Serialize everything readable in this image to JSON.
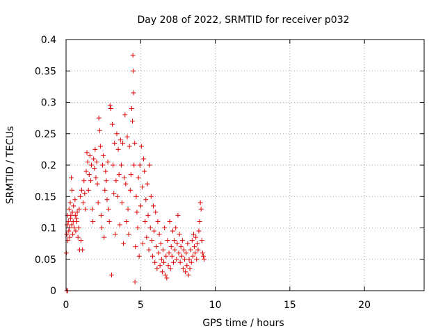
{
  "chart_data": {
    "type": "scatter",
    "title": "Day 208 of 2022, SRMTID for receiver p032",
    "xlabel": "GPS time / hours",
    "ylabel": "SRMTID / TECUs",
    "xlim": [
      0,
      24
    ],
    "ylim": [
      0,
      0.4
    ],
    "x_ticks": [
      0,
      5,
      10,
      15,
      20
    ],
    "x_tick_labels": [
      "0",
      "5",
      "10",
      "15",
      "20"
    ],
    "y_ticks": [
      0,
      0.05,
      0.1,
      0.15,
      0.2,
      0.25,
      0.3,
      0.35,
      0.4
    ],
    "y_tick_labels": [
      "0",
      "0.05",
      "0.1",
      "0.15",
      "0.2",
      "0.25",
      "0.3",
      "0.35",
      "0.4"
    ],
    "grid": true,
    "marker": "+",
    "marker_color": "#dd0000",
    "grid_color": "#a0a0a0",
    "series": [
      {
        "name": "SRMTID",
        "points": [
          [
            0.05,
            0.0
          ],
          [
            0.1,
            0.0
          ],
          [
            0.02,
            0.06
          ],
          [
            0.05,
            0.09
          ],
          [
            0.08,
            0.105
          ],
          [
            0.1,
            0.12
          ],
          [
            0.12,
            0.08
          ],
          [
            0.15,
            0.11
          ],
          [
            0.18,
            0.095
          ],
          [
            0.2,
            0.13
          ],
          [
            0.22,
            0.1
          ],
          [
            0.25,
            0.085
          ],
          [
            0.28,
            0.14
          ],
          [
            0.3,
            0.115
          ],
          [
            0.32,
            0.12
          ],
          [
            0.35,
            0.18
          ],
          [
            0.38,
            0.105
          ],
          [
            0.4,
            0.16
          ],
          [
            0.42,
            0.125
          ],
          [
            0.45,
            0.09
          ],
          [
            0.48,
            0.11
          ],
          [
            0.5,
            0.135
          ],
          [
            0.55,
            0.1
          ],
          [
            0.6,
            0.145
          ],
          [
            0.62,
            0.12
          ],
          [
            0.65,
            0.095
          ],
          [
            0.7,
            0.115
          ],
          [
            0.72,
            0.11
          ],
          [
            0.75,
            0.125
          ],
          [
            0.8,
            0.085
          ],
          [
            0.85,
            0.1
          ],
          [
            0.88,
            0.13
          ],
          [
            0.9,
            0.065
          ],
          [
            0.95,
            0.15
          ],
          [
            1.0,
            0.08
          ],
          [
            1.05,
            0.16
          ],
          [
            1.1,
            0.065
          ],
          [
            1.15,
            0.14
          ],
          [
            1.2,
            0.175
          ],
          [
            1.25,
            0.155
          ],
          [
            1.3,
            0.13
          ],
          [
            1.35,
            0.19
          ],
          [
            1.4,
            0.22
          ],
          [
            1.45,
            0.205
          ],
          [
            1.5,
            0.16
          ],
          [
            1.55,
            0.185
          ],
          [
            1.6,
            0.215
          ],
          [
            1.65,
            0.175
          ],
          [
            1.7,
            0.2
          ],
          [
            1.75,
            0.13
          ],
          [
            1.8,
            0.11
          ],
          [
            1.85,
            0.21
          ],
          [
            1.9,
            0.195
          ],
          [
            1.95,
            0.225
          ],
          [
            2.0,
            0.18
          ],
          [
            2.05,
            0.205
          ],
          [
            2.1,
            0.17
          ],
          [
            2.15,
            0.14
          ],
          [
            2.2,
            0.275
          ],
          [
            2.25,
            0.255
          ],
          [
            2.3,
            0.23
          ],
          [
            2.35,
            0.12
          ],
          [
            2.4,
            0.1
          ],
          [
            2.45,
            0.2
          ],
          [
            2.5,
            0.215
          ],
          [
            2.55,
            0.085
          ],
          [
            2.6,
            0.16
          ],
          [
            2.65,
            0.19
          ],
          [
            2.7,
            0.175
          ],
          [
            2.75,
            0.145
          ],
          [
            2.8,
            0.205
          ],
          [
            2.85,
            0.13
          ],
          [
            2.9,
            0.11
          ],
          [
            2.95,
            0.295
          ],
          [
            3.0,
            0.29
          ],
          [
            3.05,
            0.025
          ],
          [
            3.1,
            0.265
          ],
          [
            3.15,
            0.2
          ],
          [
            3.2,
            0.155
          ],
          [
            3.25,
            0.235
          ],
          [
            3.3,
            0.09
          ],
          [
            3.35,
            0.175
          ],
          [
            3.4,
            0.25
          ],
          [
            3.45,
            0.15
          ],
          [
            3.5,
            0.225
          ],
          [
            3.55,
            0.185
          ],
          [
            3.6,
            0.105
          ],
          [
            3.65,
            0.24
          ],
          [
            3.7,
            0.2
          ],
          [
            3.75,
            0.14
          ],
          [
            3.8,
            0.235
          ],
          [
            3.85,
            0.075
          ],
          [
            3.9,
            0.18
          ],
          [
            3.95,
            0.28
          ],
          [
            4.0,
            0.17
          ],
          [
            4.05,
            0.11
          ],
          [
            4.1,
            0.245
          ],
          [
            4.15,
            0.13
          ],
          [
            4.2,
            0.09
          ],
          [
            4.25,
            0.23
          ],
          [
            4.3,
            0.16
          ],
          [
            4.35,
            0.185
          ],
          [
            4.4,
            0.29
          ],
          [
            4.45,
            0.27
          ],
          [
            4.48,
            0.375
          ],
          [
            4.5,
            0.35
          ],
          [
            4.52,
            0.315
          ],
          [
            4.55,
            0.2
          ],
          [
            4.6,
            0.235
          ],
          [
            4.62,
            0.014
          ],
          [
            4.65,
            0.07
          ],
          [
            4.7,
            0.15
          ],
          [
            4.75,
            0.125
          ],
          [
            4.8,
            0.1
          ],
          [
            4.85,
            0.18
          ],
          [
            4.9,
            0.055
          ],
          [
            4.95,
            0.2
          ],
          [
            5.0,
            0.135
          ],
          [
            5.05,
            0.23
          ],
          [
            5.1,
            0.165
          ],
          [
            5.15,
            0.075
          ],
          [
            5.2,
            0.21
          ],
          [
            5.25,
            0.19
          ],
          [
            5.3,
            0.11
          ],
          [
            5.35,
            0.145
          ],
          [
            5.4,
            0.085
          ],
          [
            5.45,
            0.17
          ],
          [
            5.5,
            0.12
          ],
          [
            5.55,
            0.065
          ],
          [
            5.6,
            0.2
          ],
          [
            5.65,
            0.1
          ],
          [
            5.7,
            0.15
          ],
          [
            5.75,
            0.08
          ],
          [
            5.8,
            0.055
          ],
          [
            5.85,
            0.135
          ],
          [
            5.9,
            0.095
          ],
          [
            5.95,
            0.045
          ],
          [
            6.0,
            0.125
          ],
          [
            6.05,
            0.07
          ],
          [
            6.1,
            0.035
          ],
          [
            6.15,
            0.11
          ],
          [
            6.2,
            0.06
          ],
          [
            6.25,
            0.09
          ],
          [
            6.3,
            0.04
          ],
          [
            6.35,
            0.075
          ],
          [
            6.4,
            0.05
          ],
          [
            6.45,
            0.03
          ],
          [
            6.5,
            0.065
          ],
          [
            6.55,
            0.045
          ],
          [
            6.6,
            0.1
          ],
          [
            6.65,
            0.025
          ],
          [
            6.7,
            0.055
          ],
          [
            6.75,
            0.02
          ],
          [
            6.8,
            0.08
          ],
          [
            6.85,
            0.04
          ],
          [
            6.9,
            0.06
          ],
          [
            6.95,
            0.11
          ],
          [
            7.0,
            0.035
          ],
          [
            7.05,
            0.07
          ],
          [
            7.1,
            0.055
          ],
          [
            7.15,
            0.095
          ],
          [
            7.2,
            0.045
          ],
          [
            7.25,
            0.08
          ],
          [
            7.3,
            0.065
          ],
          [
            7.35,
            0.1
          ],
          [
            7.4,
            0.05
          ],
          [
            7.45,
            0.075
          ],
          [
            7.5,
            0.12
          ],
          [
            7.55,
            0.06
          ],
          [
            7.6,
            0.09
          ],
          [
            7.65,
            0.045
          ],
          [
            7.7,
            0.07
          ],
          [
            7.75,
            0.055
          ],
          [
            7.8,
            0.08
          ],
          [
            7.85,
            0.035
          ],
          [
            7.9,
            0.065
          ],
          [
            7.95,
            0.05
          ],
          [
            8.0,
            0.03
          ],
          [
            8.05,
            0.06
          ],
          [
            8.1,
            0.04
          ],
          [
            8.15,
            0.075
          ],
          [
            8.2,
            0.025
          ],
          [
            8.25,
            0.05
          ],
          [
            8.3,
            0.035
          ],
          [
            8.35,
            0.065
          ],
          [
            8.4,
            0.045
          ],
          [
            8.45,
            0.08
          ],
          [
            8.5,
            0.055
          ],
          [
            8.55,
            0.09
          ],
          [
            8.6,
            0.07
          ],
          [
            8.65,
            0.06
          ],
          [
            8.7,
            0.085
          ],
          [
            8.75,
            0.05
          ],
          [
            8.8,
            0.075
          ],
          [
            8.85,
            0.065
          ],
          [
            8.9,
            0.095
          ],
          [
            8.95,
            0.11
          ],
          [
            9.0,
            0.14
          ],
          [
            9.05,
            0.13
          ],
          [
            9.1,
            0.08
          ],
          [
            9.15,
            0.06
          ],
          [
            9.2,
            0.055
          ],
          [
            9.25,
            0.05
          ]
        ]
      }
    ]
  }
}
